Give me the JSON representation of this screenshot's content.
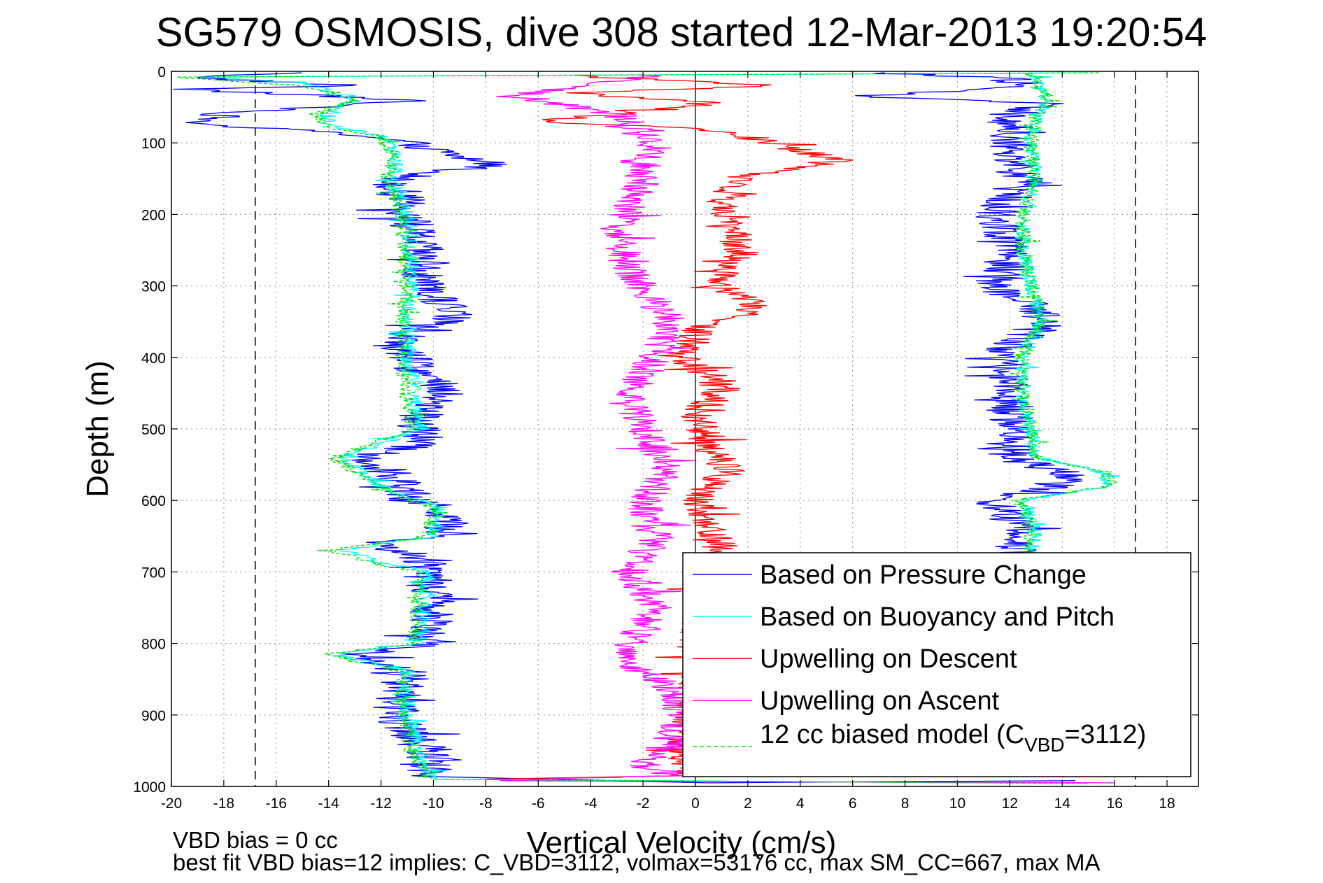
{
  "chart_data": {
    "type": "line",
    "title": "SG579 OSMOSIS, dive 308 started 12-Mar-2013 19:20:54",
    "xlabel": "Vertical Velocity (cm/s)",
    "ylabel": "Depth (m)",
    "xlim": [
      -20,
      19.2
    ],
    "ylim": [
      0,
      1000
    ],
    "y_reversed": true,
    "grid": true,
    "x_ticks": [
      -20,
      -18,
      -16,
      -14,
      -12,
      -10,
      -8,
      -6,
      -4,
      -2,
      0,
      2,
      4,
      6,
      8,
      10,
      12,
      14,
      16,
      18
    ],
    "y_ticks": [
      0,
      100,
      200,
      300,
      400,
      500,
      600,
      700,
      800,
      900,
      1000
    ],
    "reference_lines": [
      {
        "x": -16.8,
        "style": "dashed",
        "color": "#000000"
      },
      {
        "x": 0,
        "style": "solid",
        "color": "#000000"
      },
      {
        "x": 16.8,
        "style": "dashed",
        "color": "#000000"
      }
    ],
    "legend_position": "bottom-right",
    "series": [
      {
        "name": "Based on Pressure Change",
        "color": "#0000ff",
        "style": "solid",
        "noise": 0.9,
        "points": [
          [
            -14.5,
            2
          ],
          [
            -19.5,
            8
          ],
          [
            -13,
            20
          ],
          [
            -19.7,
            25
          ],
          [
            -11,
            40
          ],
          [
            -18,
            60
          ],
          [
            -19.2,
            75
          ],
          [
            -13.5,
            85
          ],
          [
            -11,
            100
          ],
          [
            -9,
            120
          ],
          [
            -7.5,
            130
          ],
          [
            -11.5,
            150
          ],
          [
            -11,
            200
          ],
          [
            -10.5,
            250
          ],
          [
            -10.5,
            300
          ],
          [
            -9,
            340
          ],
          [
            -10.5,
            360
          ],
          [
            -11.5,
            380
          ],
          [
            -10.5,
            420
          ],
          [
            -9.5,
            450
          ],
          [
            -10.5,
            480
          ],
          [
            -10.5,
            520
          ],
          [
            -12.5,
            540
          ],
          [
            -11,
            580
          ],
          [
            -11,
            600
          ],
          [
            -9.5,
            610
          ],
          [
            -9.5,
            650
          ],
          [
            -12,
            660
          ],
          [
            -10,
            690
          ],
          [
            -10,
            720
          ],
          [
            -10,
            800
          ],
          [
            -13,
            815
          ],
          [
            -11,
            840
          ],
          [
            -11.5,
            900
          ],
          [
            -10.5,
            940
          ],
          [
            -10,
            975
          ],
          [
            -10.5,
            985
          ],
          [
            0,
            995
          ],
          [
            14.5,
            992
          ]
        ]
      },
      {
        "name": "Based on Buoyancy and Pitch",
        "color": "#00ffff",
        "style": "solid",
        "noise": 0.35,
        "points": [
          [
            15,
            2
          ],
          [
            -19,
            8
          ],
          [
            -15,
            15
          ],
          [
            -13,
            40
          ],
          [
            -14,
            60
          ],
          [
            -14,
            75
          ],
          [
            -12,
            90
          ],
          [
            -11.5,
            120
          ],
          [
            -11.5,
            150
          ],
          [
            -11,
            200
          ],
          [
            -10.8,
            300
          ],
          [
            -11,
            350
          ],
          [
            -11,
            400
          ],
          [
            -10.5,
            500
          ],
          [
            -13.5,
            540
          ],
          [
            -12,
            580
          ],
          [
            -9.8,
            610
          ],
          [
            -10,
            650
          ],
          [
            -13.5,
            670
          ],
          [
            -11.5,
            690
          ],
          [
            -10.2,
            700
          ],
          [
            -10.5,
            800
          ],
          [
            -13.8,
            815
          ],
          [
            -11,
            840
          ],
          [
            -11,
            900
          ],
          [
            -10.5,
            960
          ],
          [
            -10,
            990
          ],
          [
            15,
            996
          ]
        ]
      },
      {
        "name": "Upwelling on Descent",
        "color": "#ff0000",
        "style": "solid",
        "noise": 0.7,
        "points": [
          [
            -5,
            5
          ],
          [
            3,
            20
          ],
          [
            -5,
            30
          ],
          [
            1,
            45
          ],
          [
            -6,
            70
          ],
          [
            0.5,
            80
          ],
          [
            3,
            100
          ],
          [
            5.5,
            125
          ],
          [
            1.5,
            150
          ],
          [
            1,
            200
          ],
          [
            1.8,
            250
          ],
          [
            0.8,
            300
          ],
          [
            2.5,
            330
          ],
          [
            0.2,
            360
          ],
          [
            -0.5,
            400
          ],
          [
            1.2,
            440
          ],
          [
            0,
            480
          ],
          [
            0.5,
            520
          ],
          [
            1.2,
            560
          ],
          [
            0,
            600
          ],
          [
            1,
            660
          ],
          [
            0.5,
            700
          ],
          [
            0,
            800
          ],
          [
            -0.2,
            900
          ],
          [
            -0.5,
            960
          ],
          [
            0,
            985
          ],
          [
            -8,
            990
          ]
        ]
      },
      {
        "name": "Upwelling on Ascent",
        "color": "#ff00ff",
        "style": "solid",
        "noise": 0.7,
        "points": [
          [
            -1.5,
            5
          ],
          [
            -7,
            35
          ],
          [
            -3,
            60
          ],
          [
            -1.5,
            100
          ],
          [
            -2,
            150
          ],
          [
            -3,
            220
          ],
          [
            -2.5,
            280
          ],
          [
            -1,
            350
          ],
          [
            -1.5,
            400
          ],
          [
            -2.5,
            450
          ],
          [
            -2,
            500
          ],
          [
            -1,
            560
          ],
          [
            -2,
            600
          ],
          [
            -1.5,
            650
          ],
          [
            -2.5,
            700
          ],
          [
            -1.5,
            750
          ],
          [
            -3,
            820
          ],
          [
            -1,
            860
          ],
          [
            -0.5,
            900
          ],
          [
            -1,
            940
          ],
          [
            -2,
            970
          ],
          [
            -1,
            985
          ],
          [
            -8,
            992
          ],
          [
            16,
            995
          ]
        ]
      },
      {
        "name": "12 cc biased model (C_VBD=3112)",
        "color": "#00dd00",
        "style": "dashed",
        "noise": 0.3,
        "points": [
          [
            15.5,
            2
          ],
          [
            -20,
            8
          ],
          [
            -15,
            20
          ],
          [
            -13,
            40
          ],
          [
            -14.5,
            60
          ],
          [
            -14,
            80
          ],
          [
            -12,
            90
          ],
          [
            -11.5,
            120
          ],
          [
            -11.8,
            150
          ],
          [
            -11.2,
            200
          ],
          [
            -11,
            300
          ],
          [
            -11.2,
            350
          ],
          [
            -11.2,
            400
          ],
          [
            -10.8,
            500
          ],
          [
            -13.8,
            540
          ],
          [
            -12.2,
            580
          ],
          [
            -10,
            610
          ],
          [
            -10.2,
            650
          ],
          [
            -14,
            670
          ],
          [
            -12,
            690
          ],
          [
            -10.5,
            700
          ],
          [
            -10.8,
            800
          ],
          [
            -14,
            815
          ],
          [
            -11.2,
            840
          ],
          [
            -11.2,
            900
          ],
          [
            -10.8,
            960
          ],
          [
            -10,
            990
          ],
          [
            15,
            996
          ]
        ]
      },
      {
        "name": "",
        "color": "#0000ff",
        "style": "solid",
        "noise": 0.9,
        "points": [
          [
            7,
            2
          ],
          [
            12,
            10
          ],
          [
            12.5,
            20
          ],
          [
            6,
            35
          ],
          [
            13.5,
            45
          ],
          [
            12,
            60
          ],
          [
            12,
            100
          ],
          [
            12.5,
            150
          ],
          [
            11.5,
            200
          ],
          [
            12,
            250
          ],
          [
            11.5,
            300
          ],
          [
            13.5,
            350
          ],
          [
            12,
            380
          ],
          [
            12,
            450
          ],
          [
            12,
            500
          ],
          [
            12,
            540
          ],
          [
            14,
            560
          ],
          [
            14,
            580
          ],
          [
            11,
            600
          ],
          [
            12,
            620
          ],
          [
            12.5,
            650
          ],
          [
            12,
            680
          ]
        ]
      },
      {
        "name": "",
        "color": "#00ffff",
        "style": "solid",
        "noise": 0.3,
        "points": [
          [
            13,
            2
          ],
          [
            13,
            20
          ],
          [
            13.5,
            40
          ],
          [
            13,
            60
          ],
          [
            12.8,
            100
          ],
          [
            13,
            150
          ],
          [
            12.5,
            200
          ],
          [
            12.5,
            250
          ],
          [
            12.8,
            300
          ],
          [
            13.2,
            350
          ],
          [
            12.5,
            400
          ],
          [
            12.5,
            450
          ],
          [
            12.8,
            500
          ],
          [
            13,
            540
          ],
          [
            15.5,
            560
          ],
          [
            15.8,
            580
          ],
          [
            12.5,
            600
          ],
          [
            12.8,
            620
          ],
          [
            13,
            650
          ],
          [
            12.8,
            680
          ]
        ]
      },
      {
        "name": "",
        "color": "#00dd00",
        "style": "dashed",
        "noise": 0.3,
        "points": [
          [
            13,
            2
          ],
          [
            13,
            20
          ],
          [
            13.5,
            40
          ],
          [
            13,
            60
          ],
          [
            12.8,
            100
          ],
          [
            13,
            150
          ],
          [
            12.5,
            200
          ],
          [
            12.5,
            250
          ],
          [
            12.8,
            300
          ],
          [
            13.2,
            350
          ],
          [
            12.5,
            400
          ],
          [
            12.5,
            450
          ],
          [
            12.8,
            500
          ],
          [
            13,
            540
          ],
          [
            15.6,
            560
          ],
          [
            15.9,
            580
          ],
          [
            12.3,
            600
          ],
          [
            12.6,
            620
          ],
          [
            12.8,
            650
          ],
          [
            12.6,
            680
          ]
        ]
      }
    ]
  },
  "notes": {
    "line1": "VBD bias = 0 cc",
    "line2": "best fit VBD bias=12 implies: C_VBD=3112, volmax=53176 cc, max SM_CC=667, max MA"
  },
  "legend": {
    "items": [
      {
        "label": "Based on Pressure Change",
        "color": "#0000ff",
        "style": "solid"
      },
      {
        "label": "Based on Buoyancy and Pitch",
        "color": "#00ffff",
        "style": "solid"
      },
      {
        "label": "Upwelling on Descent",
        "color": "#ff0000",
        "style": "solid"
      },
      {
        "label": "Upwelling on Ascent",
        "color": "#ff00ff",
        "style": "solid"
      },
      {
        "label_prefix": "12 cc biased model (C",
        "label_sub": "VBD",
        "label_suffix": "=3112)",
        "color": "#00dd00",
        "style": "dashed"
      }
    ]
  }
}
